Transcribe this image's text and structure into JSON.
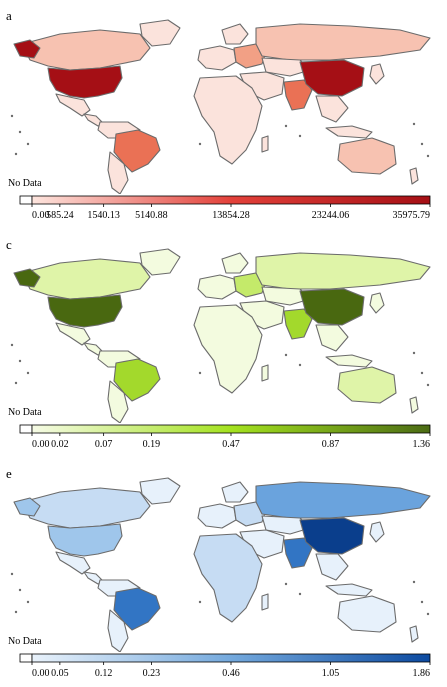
{
  "panels": [
    {
      "label": "a",
      "no_data_label": "No Data",
      "palette": [
        "#fbe3dc",
        "#f7c2b1",
        "#f2a085",
        "#ea7155",
        "#d63a2c",
        "#a50f15"
      ],
      "legend": {
        "gradient": [
          "#fde5de",
          "#e3413a",
          "#a50f15"
        ],
        "ticks": [
          "0.00",
          "585.24",
          "1540.13",
          "5140.88",
          "13854.28",
          "23244.06",
          "35975.79"
        ]
      },
      "highlights": {
        "north-america-usa": 5,
        "china": 5,
        "europe-east": 2,
        "south-america-brazil": 3,
        "india": 3,
        "russia": 1,
        "canada": 1,
        "australia": 1,
        "africa": 0
      }
    },
    {
      "label": "c",
      "no_data_label": "No Data",
      "palette": [
        "#f3fbdf",
        "#dff4a8",
        "#c4ea6a",
        "#a3d92c",
        "#6f9a1c",
        "#496810"
      ],
      "legend": {
        "gradient": [
          "#f6fbe6",
          "#a4e21f",
          "#4b6b14"
        ],
        "ticks": [
          "0.00",
          "0.02",
          "0.07",
          "0.19",
          "0.47",
          "0.87",
          "1.36"
        ]
      },
      "highlights": {
        "north-america-usa": 5,
        "china": 5,
        "europe-east": 2,
        "south-america-brazil": 3,
        "india": 3,
        "russia": 1,
        "canada": 1,
        "australia": 1,
        "africa": 0
      }
    },
    {
      "label": "e",
      "no_data_label": "No Data",
      "palette": [
        "#e7f1fb",
        "#c6dcf3",
        "#9fc6eb",
        "#6aa3dd",
        "#3275c4",
        "#0a3e8c"
      ],
      "legend": {
        "gradient": [
          "#e9f2fb",
          "#74a9dd",
          "#0c4aa0"
        ],
        "ticks": [
          "0.00",
          "0.05",
          "0.12",
          "0.23",
          "0.46",
          "1.05",
          "1.86"
        ]
      },
      "highlights": {
        "north-america-usa": 2,
        "china": 5,
        "europe-east": 1,
        "south-america-brazil": 4,
        "india": 4,
        "russia": 3,
        "canada": 1,
        "australia": 0,
        "africa": 1
      }
    }
  ]
}
